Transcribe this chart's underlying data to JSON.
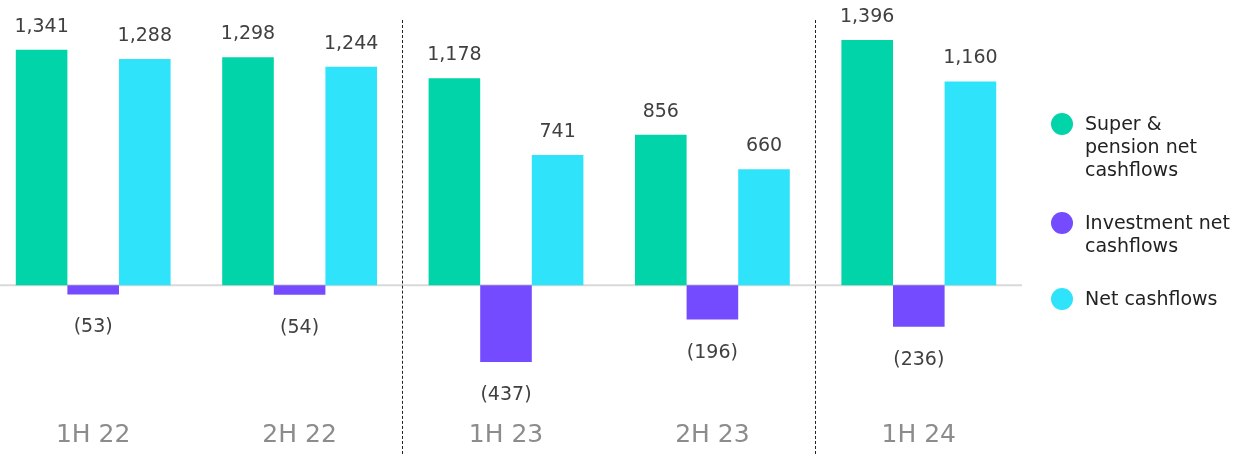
{
  "chart_data": {
    "type": "bar",
    "categories": [
      "1H 22",
      "2H 22",
      "1H 23",
      "2H 23",
      "1H 24"
    ],
    "series": [
      {
        "name": "Super & pension net cashflows",
        "color": "#00d4a8",
        "values": [
          1341,
          1298,
          1178,
          856,
          1396
        ],
        "value_labels": [
          "1,341",
          "1,298",
          "1,178",
          "856",
          "1,396"
        ]
      },
      {
        "name": "Investment net cashflows",
        "color": "#744bff",
        "values": [
          -53,
          -54,
          -437,
          -196,
          -236
        ],
        "value_labels": [
          "(53)",
          "(54)",
          "(437)",
          "(196)",
          "(236)"
        ]
      },
      {
        "name": "Net cashflows",
        "color": "#2fe4fa",
        "values": [
          1288,
          1244,
          741,
          660,
          1160
        ],
        "value_labels": [
          "1,288",
          "1,244",
          "741",
          "660",
          "1,160"
        ]
      }
    ],
    "legend": "right",
    "grid": false,
    "tick_labels": "x"
  }
}
